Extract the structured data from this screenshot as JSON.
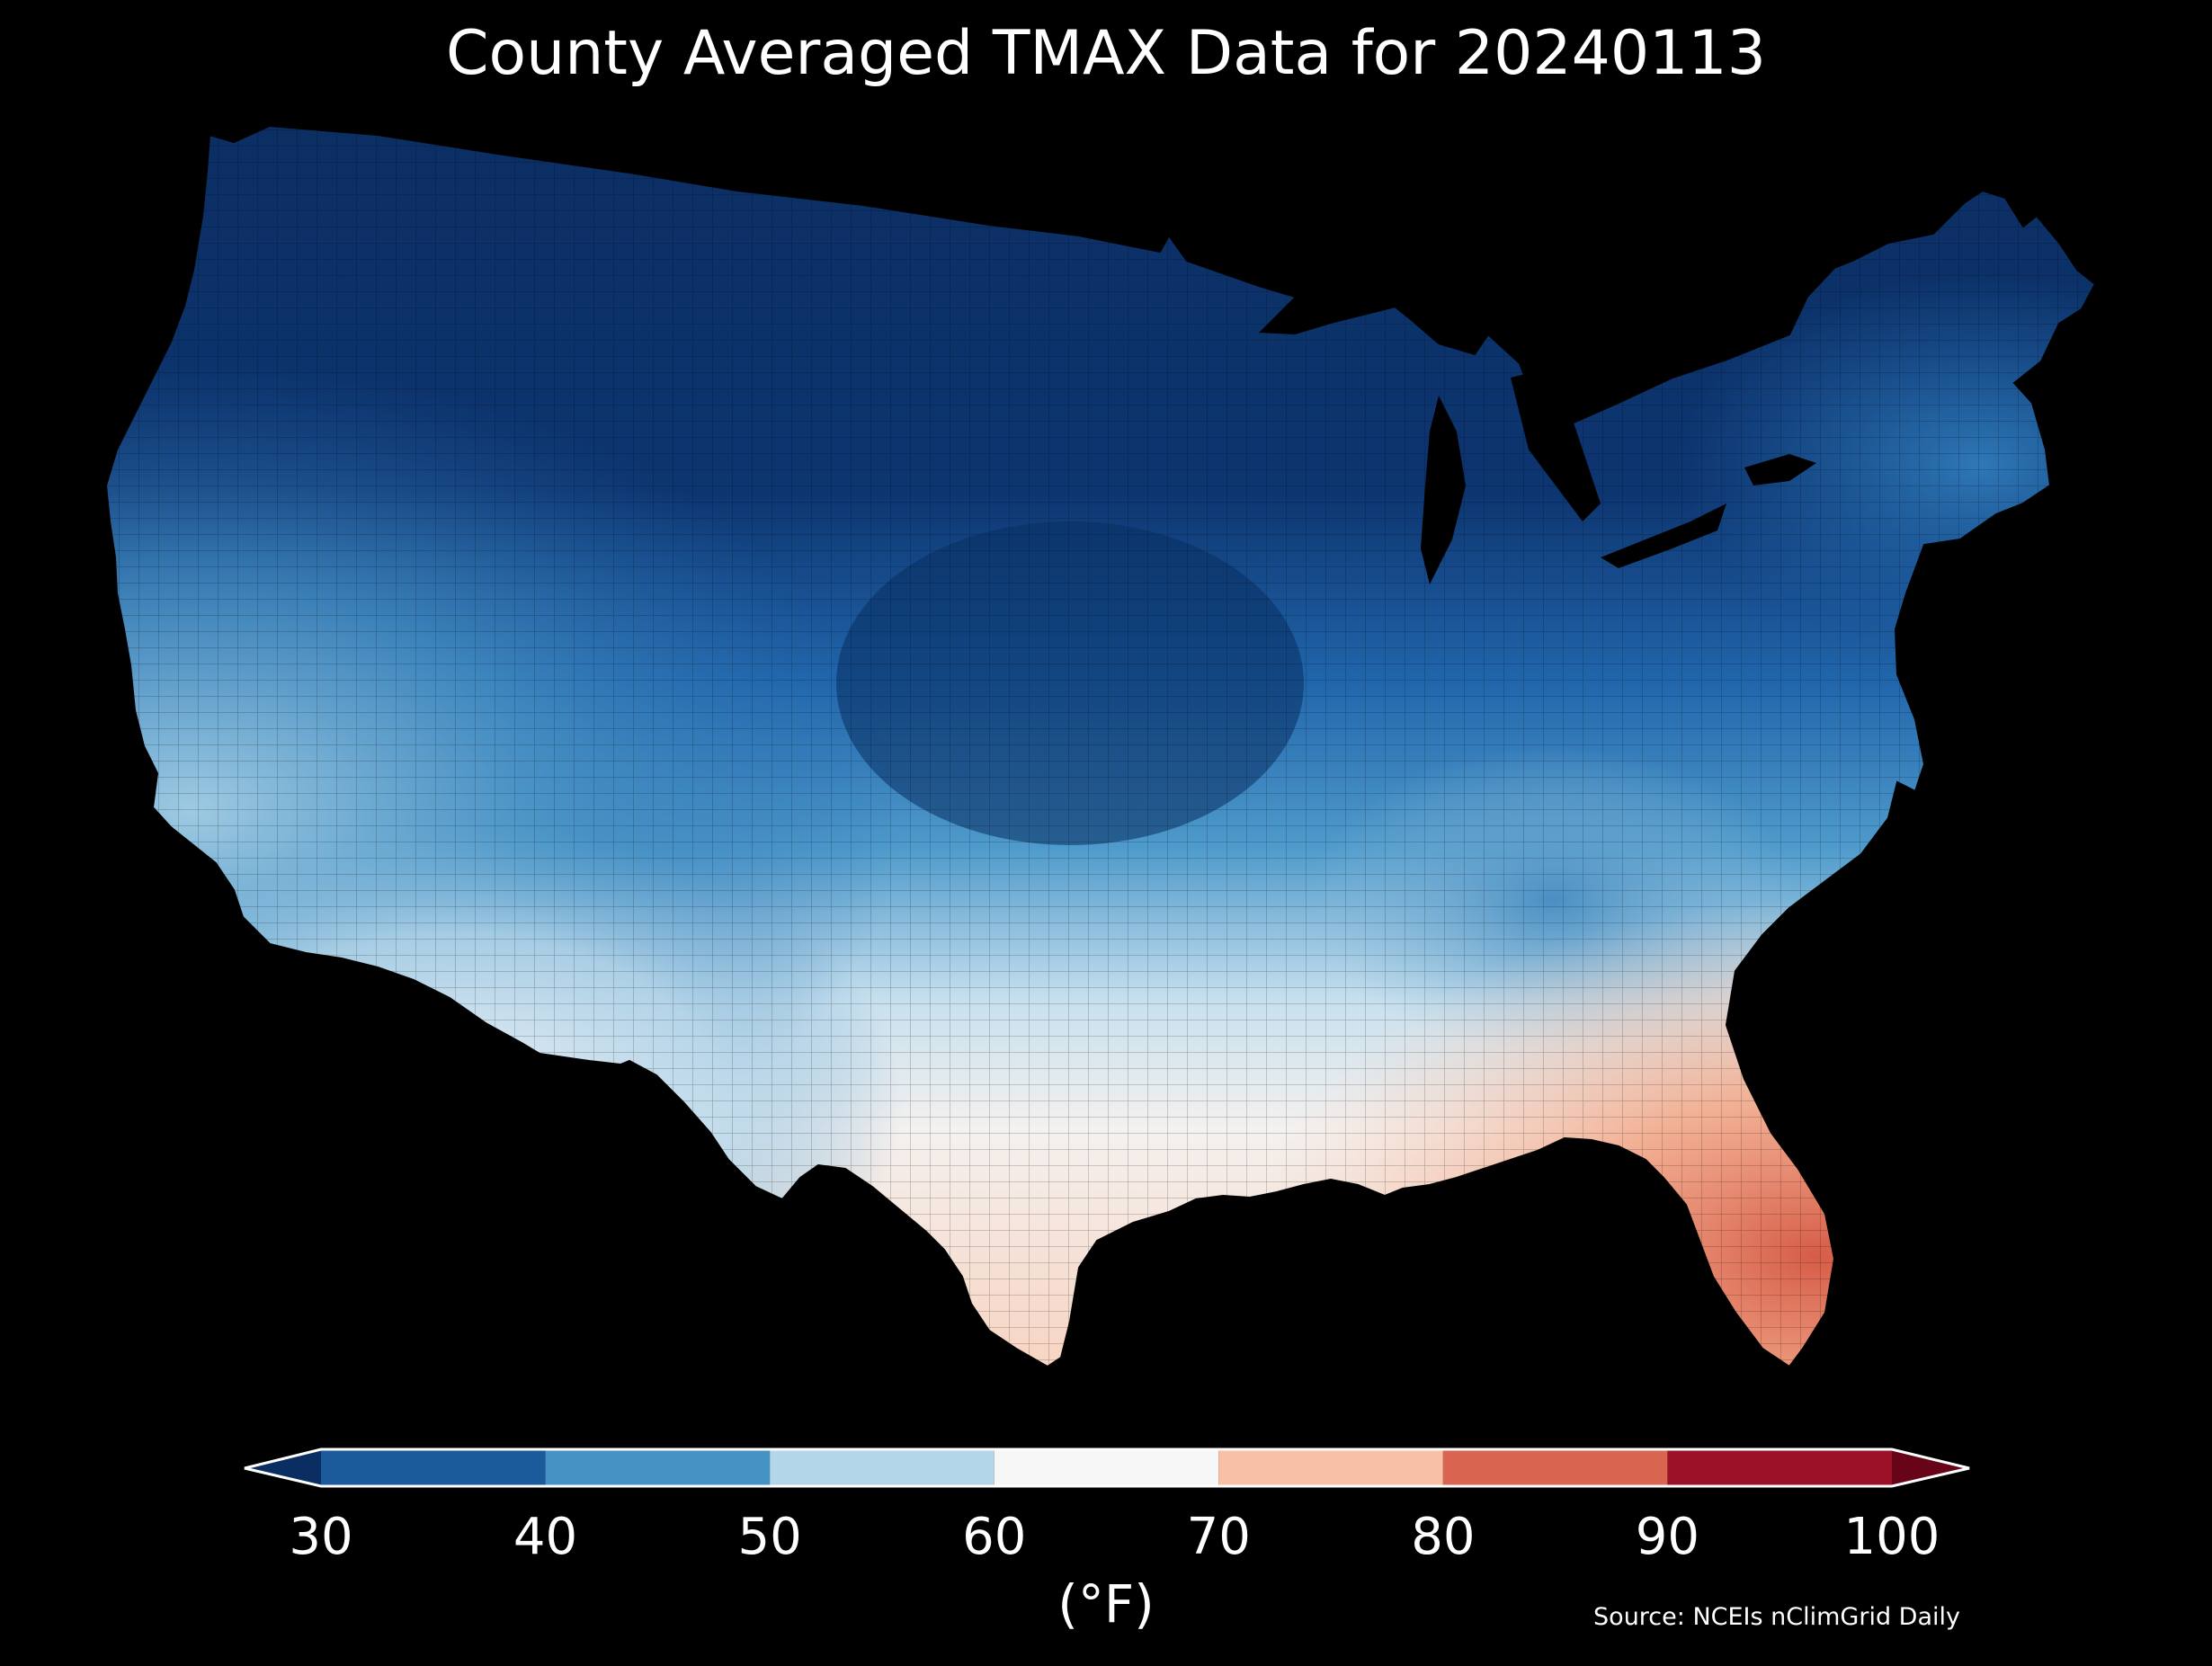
{
  "title": "County Averaged TMAX Data for 20240113",
  "colorbar": {
    "ticks": [
      "30",
      "40",
      "50",
      "60",
      "70",
      "80",
      "90",
      "100"
    ],
    "unit_label": "(°F)",
    "min": 30,
    "max": 100,
    "extend": "both",
    "bins": [
      {
        "from": 30,
        "to": 40,
        "color": "#1b5a9b"
      },
      {
        "from": 40,
        "to": 50,
        "color": "#4493c4"
      },
      {
        "from": 50,
        "to": 60,
        "color": "#b4d6e9"
      },
      {
        "from": 60,
        "to": 70,
        "color": "#f7f7f7"
      },
      {
        "from": 70,
        "to": 80,
        "color": "#f8c1a6"
      },
      {
        "from": 80,
        "to": 90,
        "color": "#d96550"
      },
      {
        "from": 90,
        "to": 100,
        "color": "#9a1128"
      }
    ],
    "under_color": "#0b2e62",
    "over_color": "#670418"
  },
  "source": "Source: NCEIs nClimGrid Daily",
  "colors": {
    "background": "#000000",
    "text": "#ffffff"
  }
}
